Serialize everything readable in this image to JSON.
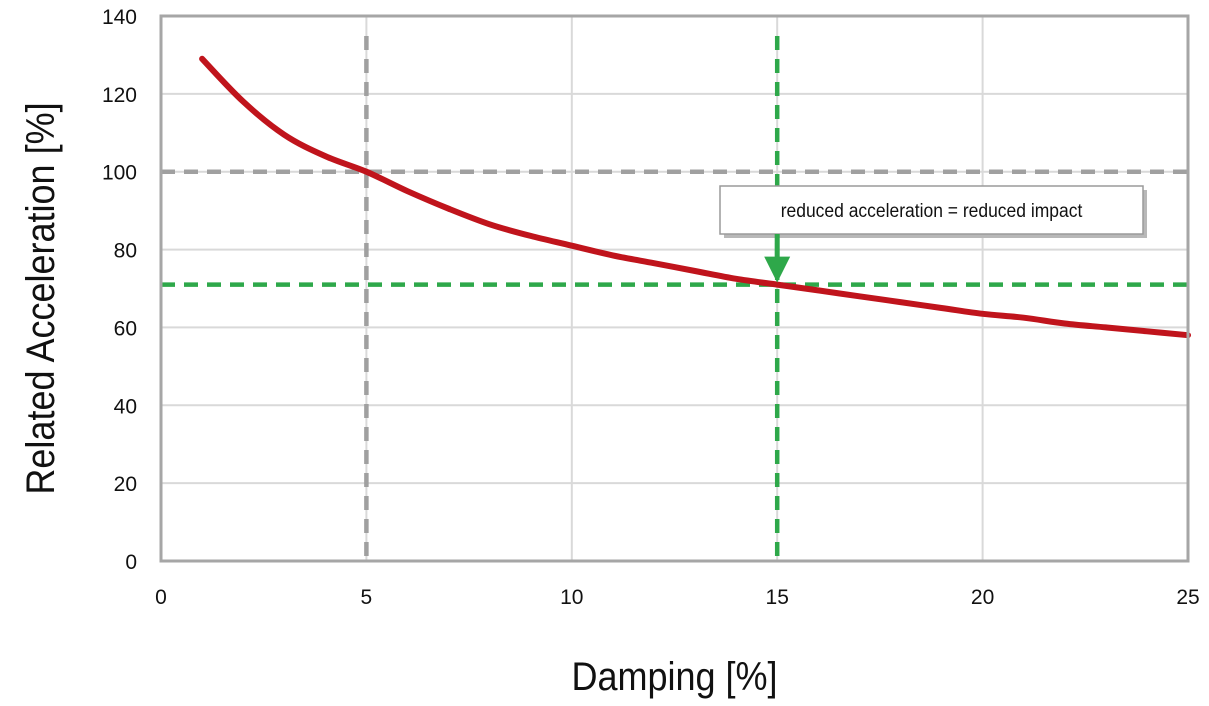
{
  "chart_data": {
    "type": "line",
    "title": "",
    "xlabel": "Damping [%]",
    "ylabel": "Related Acceleration [%]",
    "xlim": [
      0,
      25
    ],
    "ylim": [
      0,
      140
    ],
    "xticks": [
      0,
      5,
      10,
      15,
      20,
      25
    ],
    "yticks": [
      0,
      20,
      40,
      60,
      80,
      100,
      120,
      140
    ],
    "grid": true,
    "series": [
      {
        "color": "#c0141c",
        "x": [
          1,
          2,
          3,
          4,
          5,
          6,
          7,
          8,
          9,
          10,
          11,
          12,
          13,
          14,
          15,
          16,
          17,
          18,
          19,
          20,
          21,
          22,
          23,
          24,
          25
        ],
        "y": [
          129,
          118,
          109.5,
          104,
          100,
          95,
          90.5,
          86.5,
          83.5,
          81,
          78.5,
          76.5,
          74.5,
          72.5,
          71,
          69.5,
          68,
          66.5,
          65,
          63.5,
          62.5,
          61,
          60,
          59,
          58
        ]
      }
    ],
    "reference_lines": [
      {
        "axis": "x",
        "value": 5,
        "color": "#a0a0a0",
        "style": "dashed"
      },
      {
        "axis": "y",
        "value": 100,
        "color": "#a0a0a0",
        "style": "dashed"
      },
      {
        "axis": "x",
        "value": 15,
        "color": "#2ea84a",
        "style": "dashed"
      },
      {
        "axis": "y",
        "value": 71,
        "color": "#2ea84a",
        "style": "dashed"
      }
    ],
    "annotations": [
      {
        "text": "reduced acceleration = reduced impact",
        "x": 15,
        "arrow_from_y": 100,
        "arrow_to_y": 71,
        "arrow_color": "#2ea84a"
      }
    ]
  }
}
